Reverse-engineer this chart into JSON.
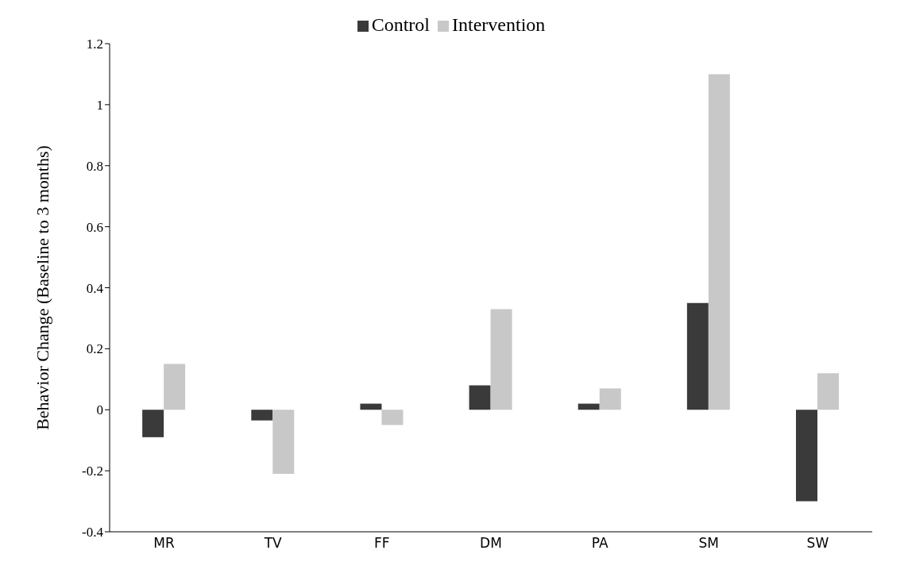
{
  "chart_data": {
    "type": "bar",
    "ylabel": "Behavior Change  (Baseline to 3 months)",
    "categories": [
      "MR",
      "TV",
      "FF",
      "DM",
      "PA",
      "SM",
      "SW"
    ],
    "series": [
      {
        "name": "Control",
        "color": "#3a3a3a",
        "values": [
          -0.09,
          -0.035,
          0.02,
          0.08,
          0.02,
          0.35,
          -0.3
        ]
      },
      {
        "name": "Intervention",
        "color": "#c8c8c8",
        "values": [
          0.15,
          -0.21,
          -0.05,
          0.33,
          0.07,
          1.1,
          0.12
        ]
      }
    ],
    "ylim": [
      -0.4,
      1.2
    ],
    "yticks": [
      -0.4,
      -0.2,
      0,
      0.2,
      0.4,
      0.6,
      0.8,
      1,
      1.2
    ],
    "grid": false,
    "legend": "top"
  }
}
